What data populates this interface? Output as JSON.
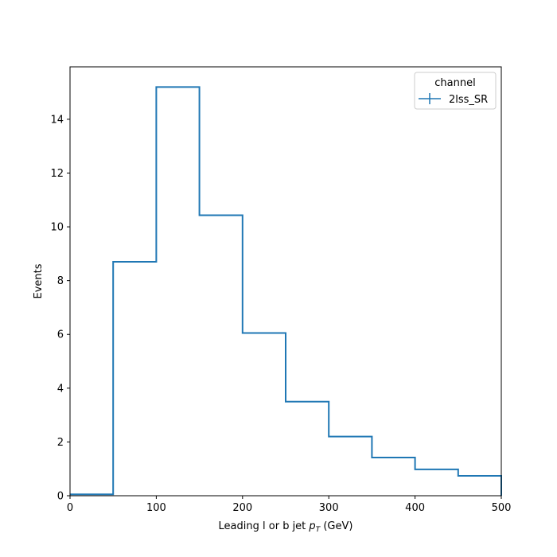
{
  "chart_data": {
    "type": "line",
    "step": "histogram",
    "xlabel_main": "Leading l or b jet ",
    "xlabel_math": "p",
    "xlabel_sub": "T",
    "xlabel_unit": " (GeV)",
    "ylabel": "Events",
    "xlim": [
      0,
      500
    ],
    "ylim": [
      0,
      15.95
    ],
    "xticks": [
      0,
      100,
      200,
      300,
      400,
      500
    ],
    "yticks": [
      0,
      2,
      4,
      6,
      8,
      10,
      12,
      14
    ],
    "grid": false,
    "legend_position": "top-right",
    "legend_title": "channel",
    "series": [
      {
        "name": "2lss_SR",
        "color": "#1f77b4",
        "bin_edges": [
          0,
          50,
          100,
          150,
          200,
          250,
          300,
          350,
          400,
          450,
          500
        ],
        "values": [
          0.05,
          8.7,
          15.2,
          10.43,
          6.05,
          3.5,
          2.2,
          1.42,
          0.98,
          0.74
        ]
      }
    ]
  }
}
